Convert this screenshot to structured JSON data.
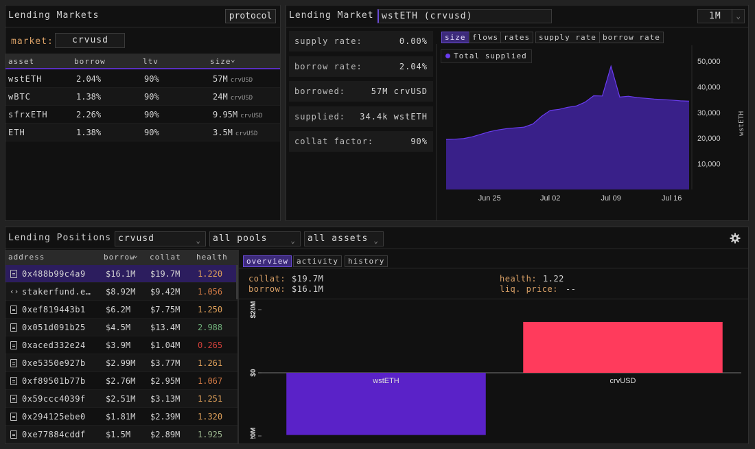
{
  "lending_markets": {
    "title": "Lending Markets",
    "protocol_button": "protocol",
    "market_label": "market:",
    "market_value": "crvusd",
    "columns": [
      "asset",
      "borrow",
      "ltv",
      "size"
    ],
    "sort_indicator": "⌄",
    "rows": [
      {
        "asset": "wstETH",
        "borrow": "2.04%",
        "ltv": "90%",
        "size": "57M",
        "unit": "crvUSD"
      },
      {
        "asset": "wBTC",
        "borrow": "1.38%",
        "ltv": "90%",
        "size": "24M",
        "unit": "crvUSD"
      },
      {
        "asset": "sfrxETH",
        "borrow": "2.26%",
        "ltv": "90%",
        "size": "9.95M",
        "unit": "crvUSD"
      },
      {
        "asset": "ETH",
        "borrow": "1.38%",
        "ltv": "90%",
        "size": "3.5M",
        "unit": "crvUSD"
      }
    ]
  },
  "lending_market": {
    "title": "Lending Market",
    "selected_market": "wstETH (crvusd)",
    "timeframe": "1M",
    "stats": [
      {
        "label": "supply rate:",
        "value": "0.00%"
      },
      {
        "label": "borrow rate:",
        "value": "2.04%"
      },
      {
        "label": "borrowed:",
        "value": "57M crvUSD"
      },
      {
        "label": "supplied:",
        "value": "34.4k wstETH"
      },
      {
        "label": "collat factor:",
        "value": "90%"
      }
    ],
    "tabs": [
      "size",
      "flows",
      "rates",
      "supply rate",
      "borrow rate"
    ],
    "active_tab": "size",
    "legend_label": "Total supplied",
    "y_axis_label": "wstETH"
  },
  "lending_positions": {
    "title": "Lending Positions",
    "filter_market": "crvusd",
    "filter_pools": "all pools",
    "filter_assets": "all assets",
    "columns": [
      "address",
      "borrow",
      "collat",
      "health"
    ],
    "sort_indicator": "⌄",
    "rows": [
      {
        "icon": "file",
        "address": "0x488b99c4a9",
        "borrow": "$16.1M",
        "collat": "$19.7M",
        "health": "1.220",
        "health_color": "#e0a15a"
      },
      {
        "icon": "code",
        "address": "stakerfund.e…",
        "borrow": "$8.92M",
        "collat": "$9.42M",
        "health": "1.056",
        "health_color": "#d27a45"
      },
      {
        "icon": "file",
        "address": "0xef819443b1",
        "borrow": "$6.2M",
        "collat": "$7.75M",
        "health": "1.250",
        "health_color": "#e0a15a"
      },
      {
        "icon": "file",
        "address": "0x051d091b25",
        "borrow": "$4.5M",
        "collat": "$13.4M",
        "health": "2.988",
        "health_color": "#6fb07a"
      },
      {
        "icon": "file",
        "address": "0xaced332e24",
        "borrow": "$3.9M",
        "collat": "$1.04M",
        "health": "0.265",
        "health_color": "#d0403a"
      },
      {
        "icon": "file",
        "address": "0xe5350e927b",
        "borrow": "$2.99M",
        "collat": "$3.77M",
        "health": "1.261",
        "health_color": "#e0a15a"
      },
      {
        "icon": "file",
        "address": "0xf89501b77b",
        "borrow": "$2.76M",
        "collat": "$2.95M",
        "health": "1.067",
        "health_color": "#d27a45"
      },
      {
        "icon": "file",
        "address": "0x59ccc4039f",
        "borrow": "$2.51M",
        "collat": "$3.13M",
        "health": "1.251",
        "health_color": "#e0a15a"
      },
      {
        "icon": "file",
        "address": "0x294125ebe0",
        "borrow": "$1.81M",
        "collat": "$2.39M",
        "health": "1.320",
        "health_color": "#e0a15a"
      },
      {
        "icon": "file",
        "address": "0xe77884cddf",
        "borrow": "$1.5M",
        "collat": "$2.89M",
        "health": "1.925",
        "health_color": "#9bb58e"
      }
    ],
    "detail_tabs": [
      "overview",
      "activity",
      "history"
    ],
    "active_detail_tab": "overview",
    "detail": {
      "collat_label": "collat:",
      "collat_value": "$19.7M",
      "borrow_label": "borrow:",
      "borrow_value": "$16.1M",
      "health_label": "health:",
      "health_value": "1.22",
      "liq_label": "liq. price:",
      "liq_value": "--"
    }
  },
  "colors": {
    "accent": "#4f1fc0",
    "positive_bar": "#ff3b5c",
    "negative_bar": "#5a22c8",
    "area": "#3c2290"
  },
  "chart_data": [
    {
      "type": "area",
      "series": [
        {
          "name": "Total supplied",
          "values": [
            19500,
            19600,
            19800,
            20500,
            21500,
            22500,
            23200,
            23700,
            24000,
            24300,
            25500,
            28500,
            30800,
            31200,
            32000,
            32500,
            34000,
            36500,
            36400,
            48000,
            36000,
            36300,
            35800,
            35500,
            35200,
            35000,
            34800,
            34500,
            34400
          ]
        }
      ],
      "x": [
        "Jun 20",
        "Jun 21",
        "Jun 22",
        "Jun 23",
        "Jun 24",
        "Jun 25",
        "Jun 26",
        "Jun 27",
        "Jun 28",
        "Jun 29",
        "Jun 30",
        "Jul 01",
        "Jul 02",
        "Jul 03",
        "Jul 04",
        "Jul 05",
        "Jul 06",
        "Jul 07",
        "Jul 08",
        "Jul 09",
        "Jul 10",
        "Jul 11",
        "Jul 12",
        "Jul 13",
        "Jul 14",
        "Jul 15",
        "Jul 16",
        "Jul 17",
        "Jul 18"
      ],
      "x_ticks": [
        "Jun 25",
        "Jul 02",
        "Jul 09",
        "Jul 16"
      ],
      "y_ticks": [
        "10,000",
        "20,000",
        "30,000",
        "40,000",
        "50,000"
      ],
      "ylabel": "wstETH",
      "ylim": [
        0,
        54000
      ],
      "legend": "top-left"
    },
    {
      "type": "bar",
      "categories": [
        "wstETH",
        "crvUSD"
      ],
      "values": [
        -19.7,
        16.1
      ],
      "y_ticks": [
        "$20M",
        "$0",
        "$20M"
      ],
      "ylim": [
        -20,
        20
      ]
    }
  ]
}
